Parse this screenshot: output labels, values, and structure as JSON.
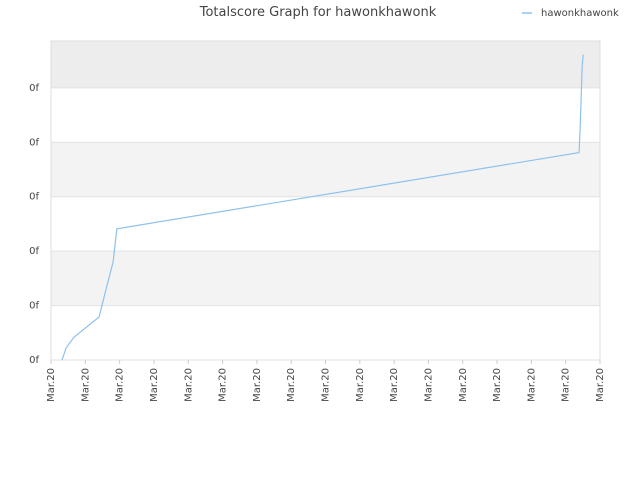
{
  "chart_data": {
    "type": "line",
    "title": "Totalscore Graph for hawonkhawonk",
    "series": [
      {
        "name": "hawonkhawonk",
        "color": "#8ec2ee",
        "x": [
          0.32,
          0.44,
          0.67,
          1.4,
          1.54,
          1.69,
          1.81,
          1.92,
          15.39,
          15.42,
          15.48,
          15.51
        ],
        "values": [
          0,
          0.22,
          0.42,
          0.79,
          1.14,
          1.51,
          1.8,
          2.41,
          3.81,
          4.23,
          5.39,
          5.61
        ]
      }
    ],
    "xlim": [
      0,
      16
    ],
    "xticks": [
      {
        "value": 0,
        "label": "Mar.20"
      },
      {
        "value": 1,
        "label": "Mar.20"
      },
      {
        "value": 2,
        "label": "Mar.20"
      },
      {
        "value": 3,
        "label": "Mar.20"
      },
      {
        "value": 4,
        "label": "Mar.20"
      },
      {
        "value": 5,
        "label": "Mar.20"
      },
      {
        "value": 6,
        "label": "Mar.20"
      },
      {
        "value": 7,
        "label": "Mar.20"
      },
      {
        "value": 8,
        "label": "Mar.20"
      },
      {
        "value": 9,
        "label": "Mar.20"
      },
      {
        "value": 10,
        "label": "Mar.20"
      },
      {
        "value": 11,
        "label": "Mar.20"
      },
      {
        "value": 12,
        "label": "Mar.20"
      },
      {
        "value": 13,
        "label": "Mar.20"
      },
      {
        "value": 14,
        "label": "Mar.20"
      },
      {
        "value": 15,
        "label": "Mar.20"
      },
      {
        "value": 16,
        "label": "Mar.20"
      }
    ],
    "ylim": [
      0,
      5.86
    ],
    "yticks": [
      {
        "value": 0,
        "label": "0f"
      },
      {
        "value": 1,
        "label": "0f"
      },
      {
        "value": 2,
        "label": "0f"
      },
      {
        "value": 3,
        "label": "0f"
      },
      {
        "value": 4,
        "label": "0f"
      },
      {
        "value": 5,
        "label": "0f"
      }
    ],
    "grid": true,
    "legend": "top-right"
  }
}
